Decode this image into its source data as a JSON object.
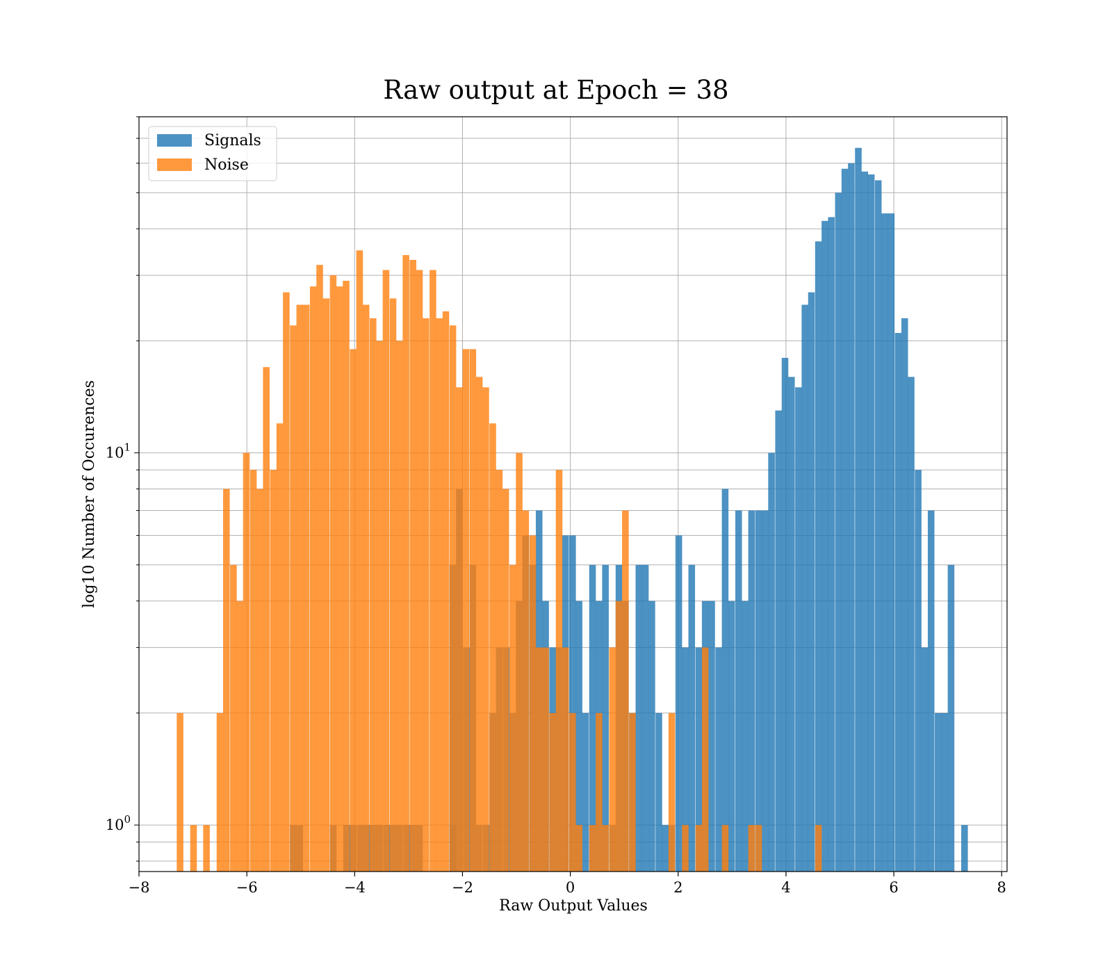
{
  "chart_data": {
    "type": "histogram",
    "title": "Raw output at Epoch = 38",
    "xlabel": "Raw Output Values",
    "ylabel": "log10 Number of Occurences",
    "xlim": [
      -8,
      8.1
    ],
    "ylim": [
      0.75,
      80
    ],
    "yscale": "log",
    "grid": true,
    "legend_position": "top-left",
    "x_ticks": [
      {
        "value": -8,
        "label": "−8"
      },
      {
        "value": -6,
        "label": "−6"
      },
      {
        "value": -4,
        "label": "−4"
      },
      {
        "value": -2,
        "label": "−2"
      },
      {
        "value": 0,
        "label": "0"
      },
      {
        "value": 2,
        "label": "2"
      },
      {
        "value": 4,
        "label": "4"
      },
      {
        "value": 6,
        "label": "6"
      },
      {
        "value": 8,
        "label": "8"
      }
    ],
    "y_ticks": [
      {
        "value": 1,
        "base": "10",
        "exp": "0"
      },
      {
        "value": 10,
        "base": "10",
        "exp": "1"
      }
    ],
    "series": [
      {
        "name": "Signals",
        "color": "#1f77b4",
        "opacity": 0.8,
        "bin_width": 0.123,
        "bins": [
          [
            -5.2,
            1
          ],
          [
            -5.08,
            1
          ],
          [
            -4.46,
            1
          ],
          [
            -4.21,
            1
          ],
          [
            -4.09,
            1
          ],
          [
            -3.96,
            1
          ],
          [
            -3.84,
            1
          ],
          [
            -3.72,
            1
          ],
          [
            -3.6,
            1
          ],
          [
            -3.47,
            1
          ],
          [
            -3.35,
            1
          ],
          [
            -3.23,
            1
          ],
          [
            -3.1,
            1
          ],
          [
            -2.98,
            1
          ],
          [
            -2.86,
            1
          ],
          [
            -2.24,
            1
          ],
          [
            -2.24,
            5
          ],
          [
            -2.12,
            8
          ],
          [
            -1.99,
            3
          ],
          [
            -1.87,
            5
          ],
          [
            -1.75,
            1
          ],
          [
            -1.62,
            1
          ],
          [
            -1.5,
            2
          ],
          [
            -1.38,
            3
          ],
          [
            -1.25,
            3
          ],
          [
            -1.13,
            2
          ],
          [
            -1.01,
            4
          ],
          [
            -0.89,
            6
          ],
          [
            -0.76,
            5
          ],
          [
            -0.64,
            7
          ],
          [
            -0.52,
            4
          ],
          [
            -0.39,
            3
          ],
          [
            -0.27,
            3
          ],
          [
            -0.15,
            6
          ],
          [
            -0.02,
            6
          ],
          [
            0.1,
            4
          ],
          [
            0.22,
            2
          ],
          [
            0.35,
            5
          ],
          [
            0.47,
            4
          ],
          [
            0.59,
            5
          ],
          [
            0.72,
            1
          ],
          [
            0.84,
            5
          ],
          [
            0.96,
            4
          ],
          [
            1.09,
            2
          ],
          [
            1.21,
            5
          ],
          [
            1.33,
            5
          ],
          [
            1.45,
            4
          ],
          [
            1.58,
            2
          ],
          [
            1.7,
            1
          ],
          [
            1.82,
            1
          ],
          [
            1.95,
            6
          ],
          [
            2.07,
            3
          ],
          [
            2.19,
            5
          ],
          [
            2.32,
            3
          ],
          [
            2.44,
            4
          ],
          [
            2.56,
            4
          ],
          [
            2.69,
            3
          ],
          [
            2.81,
            8
          ],
          [
            2.93,
            4
          ],
          [
            3.06,
            7
          ],
          [
            3.18,
            4
          ],
          [
            3.3,
            7
          ],
          [
            3.43,
            7
          ],
          [
            3.55,
            7
          ],
          [
            3.67,
            10
          ],
          [
            3.8,
            13
          ],
          [
            3.92,
            18
          ],
          [
            4.04,
            16
          ],
          [
            4.17,
            15
          ],
          [
            4.29,
            25
          ],
          [
            4.41,
            27
          ],
          [
            4.54,
            37
          ],
          [
            4.66,
            42
          ],
          [
            4.78,
            43
          ],
          [
            4.91,
            50
          ],
          [
            5.03,
            58
          ],
          [
            5.15,
            60
          ],
          [
            5.28,
            66
          ],
          [
            5.4,
            57
          ],
          [
            5.52,
            56
          ],
          [
            5.65,
            54
          ],
          [
            5.77,
            44
          ],
          [
            5.89,
            44
          ],
          [
            6.02,
            21
          ],
          [
            6.14,
            23
          ],
          [
            6.26,
            16
          ],
          [
            6.39,
            9
          ],
          [
            6.51,
            3
          ],
          [
            6.63,
            7
          ],
          [
            6.76,
            2
          ],
          [
            6.88,
            2
          ],
          [
            7.0,
            5
          ],
          [
            7.25,
            1
          ]
        ]
      },
      {
        "name": "Noise",
        "color": "#ff7f0e",
        "opacity": 0.8,
        "bin_width": 0.123,
        "bins": [
          [
            -7.3,
            2
          ],
          [
            -7.05,
            1
          ],
          [
            -6.81,
            1
          ],
          [
            -6.56,
            2
          ],
          [
            -6.44,
            8
          ],
          [
            -6.31,
            5
          ],
          [
            -6.19,
            4
          ],
          [
            -6.07,
            10
          ],
          [
            -5.94,
            9
          ],
          [
            -5.82,
            8
          ],
          [
            -5.7,
            17
          ],
          [
            -5.57,
            9
          ],
          [
            -5.45,
            12
          ],
          [
            -5.33,
            27
          ],
          [
            -5.2,
            22
          ],
          [
            -5.08,
            25
          ],
          [
            -4.96,
            25
          ],
          [
            -4.83,
            28
          ],
          [
            -4.71,
            32
          ],
          [
            -4.59,
            26
          ],
          [
            -4.46,
            30
          ],
          [
            -4.34,
            28
          ],
          [
            -4.22,
            29
          ],
          [
            -4.09,
            19
          ],
          [
            -3.97,
            35
          ],
          [
            -3.85,
            25
          ],
          [
            -3.72,
            23
          ],
          [
            -3.6,
            20
          ],
          [
            -3.48,
            31
          ],
          [
            -3.35,
            26
          ],
          [
            -3.23,
            20
          ],
          [
            -3.11,
            34
          ],
          [
            -2.98,
            33
          ],
          [
            -2.86,
            31
          ],
          [
            -2.74,
            23
          ],
          [
            -2.61,
            31
          ],
          [
            -2.49,
            23
          ],
          [
            -2.37,
            24
          ],
          [
            -2.24,
            22
          ],
          [
            -2.12,
            15
          ],
          [
            -2.0,
            19
          ],
          [
            -1.87,
            19
          ],
          [
            -1.75,
            16
          ],
          [
            -1.63,
            15
          ],
          [
            -1.5,
            12
          ],
          [
            -1.38,
            9
          ],
          [
            -1.26,
            8
          ],
          [
            -1.13,
            5
          ],
          [
            -1.01,
            10
          ],
          [
            -0.89,
            7
          ],
          [
            -0.76,
            6
          ],
          [
            -0.64,
            3
          ],
          [
            -0.52,
            3
          ],
          [
            -0.39,
            2
          ],
          [
            -0.27,
            9
          ],
          [
            -0.15,
            3
          ],
          [
            -0.02,
            2
          ],
          [
            0.1,
            1
          ],
          [
            0.35,
            1
          ],
          [
            0.47,
            2
          ],
          [
            0.59,
            1
          ],
          [
            0.72,
            3
          ],
          [
            0.84,
            4
          ],
          [
            0.96,
            7
          ],
          [
            1.09,
            2
          ],
          [
            1.82,
            2
          ],
          [
            2.07,
            1
          ],
          [
            2.32,
            1
          ],
          [
            2.44,
            3
          ],
          [
            2.81,
            1
          ],
          [
            3.3,
            1
          ],
          [
            3.43,
            1
          ],
          [
            4.54,
            1
          ]
        ]
      }
    ]
  }
}
